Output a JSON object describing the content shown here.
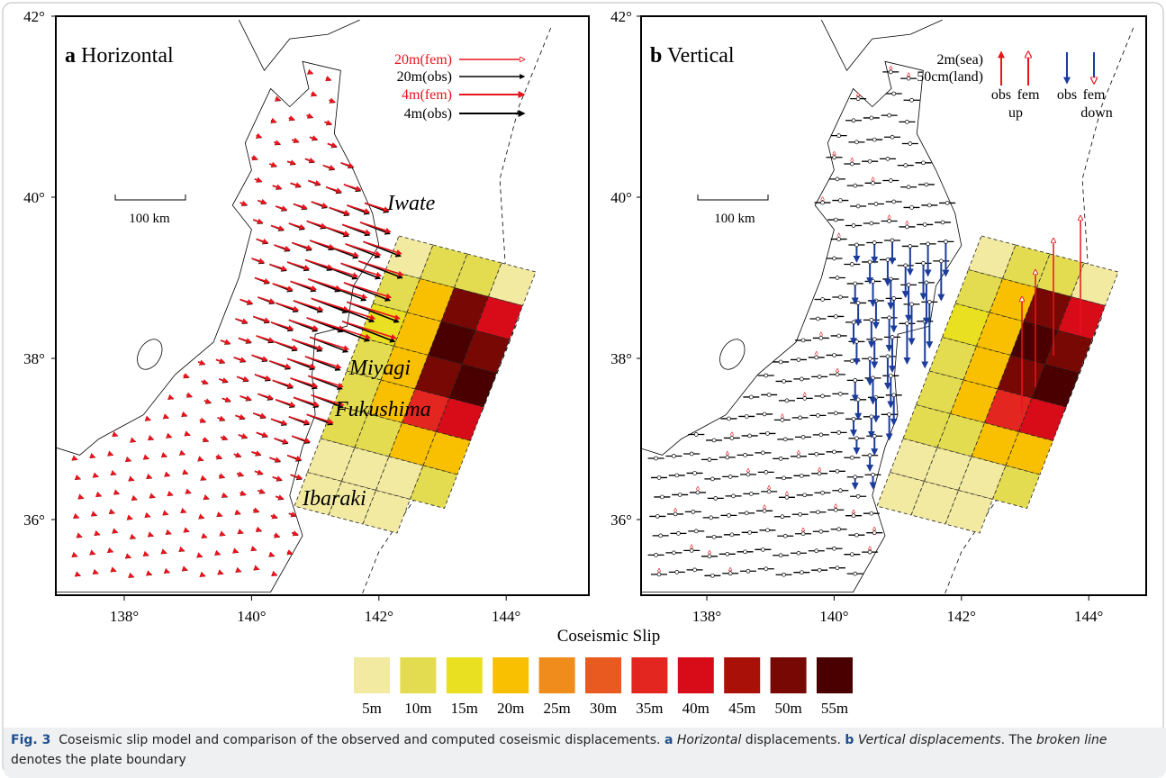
{
  "panels": [
    {
      "letter": "a",
      "title": "Horizontal",
      "legend": [
        "20m(fem)",
        "20m(obs)",
        "4m(fem)",
        "4m(obs)"
      ],
      "scale": "100 km",
      "places": [
        "Iwate",
        "Miyagi",
        "Fukushima",
        "Ibaraki"
      ]
    },
    {
      "letter": "b",
      "title": "Vertical",
      "legend_scale": [
        "2m(sea)",
        "50cm(land)"
      ],
      "legend_cols": [
        "obs",
        "fem",
        "obs",
        "fem"
      ],
      "legend_dirs": [
        "up",
        "down"
      ],
      "scale": "100 km"
    }
  ],
  "axes": {
    "lat": [
      "42°",
      "40°",
      "38°",
      "36°"
    ],
    "lon": [
      "138°",
      "140°",
      "142°",
      "144°"
    ]
  },
  "colorbar": {
    "title": "Coseismic Slip",
    "items": [
      {
        "label": "5m",
        "color": "#f2eaa0"
      },
      {
        "label": "10m",
        "color": "#e4dc50"
      },
      {
        "label": "15m",
        "color": "#e8e020"
      },
      {
        "label": "20m",
        "color": "#f8c000"
      },
      {
        "label": "25m",
        "color": "#f08c1c"
      },
      {
        "label": "30m",
        "color": "#e85a20"
      },
      {
        "label": "35m",
        "color": "#e42620"
      },
      {
        "label": "40m",
        "color": "#d80c18"
      },
      {
        "label": "45m",
        "color": "#a81008"
      },
      {
        "label": "50m",
        "color": "#780804"
      },
      {
        "label": "55m",
        "color": "#4a0000"
      }
    ]
  },
  "caption": {
    "label": "Fig. 3",
    "parts": [
      "Coseismic slip model and comparison of the observed and computed coseismic displacements. ",
      "a",
      "Horizontal",
      " displacements. ",
      "b",
      "Vertical displacements",
      ". The ",
      "broken line",
      " denotes the plate boundary"
    ]
  }
}
